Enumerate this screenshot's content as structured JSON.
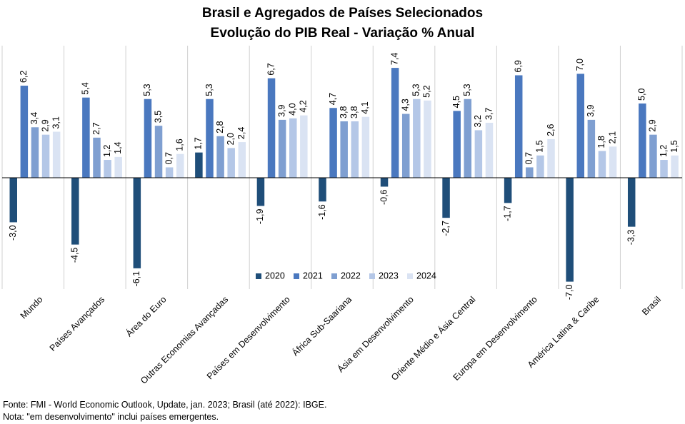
{
  "title": "Brasil e Agregados de Países Selecionados",
  "subtitle": "Evolução do PIB Real - Variação % Anual",
  "footer": {
    "source": "Fonte: FMI - World Economic Outlook, Update, jan. 2023;  Brasil (até 2022):  IBGE.",
    "note": "Nota: \"em desenvolvimento\" inclui países emergentes."
  },
  "chart_data": {
    "type": "bar",
    "categories": [
      "Mundo",
      "Países Avançados",
      "Área do Euro",
      "Outras Economias Avançadas",
      "Países em Desenvolvimento",
      "África Sub-Saariana",
      "Ásia em Desenvolvimento",
      "Oriente Médio e Ásia Central",
      "Europa em Desenvolvimento",
      "América Latina & Caribe",
      "Brasil"
    ],
    "series": [
      {
        "name": "2020",
        "color": "#1f4e79",
        "values": [
          -3.0,
          -4.5,
          -6.1,
          1.7,
          -1.9,
          -1.6,
          -0.6,
          -2.7,
          -1.7,
          -7.0,
          -3.3
        ]
      },
      {
        "name": "2021",
        "color": "#4a78bf",
        "values": [
          6.2,
          5.4,
          5.3,
          5.3,
          6.7,
          4.7,
          7.4,
          4.5,
          6.9,
          7.0,
          5.0
        ]
      },
      {
        "name": "2022",
        "color": "#7f9fd1",
        "values": [
          3.4,
          2.7,
          3.5,
          2.8,
          3.9,
          3.8,
          4.3,
          5.3,
          0.7,
          3.9,
          2.9
        ]
      },
      {
        "name": "2023",
        "color": "#b4c7e7",
        "values": [
          2.9,
          1.2,
          0.7,
          2.0,
          4.0,
          3.8,
          5.3,
          3.2,
          1.5,
          1.8,
          1.2
        ]
      },
      {
        "name": "2024",
        "color": "#dae3f3",
        "values": [
          3.1,
          1.4,
          1.6,
          2.4,
          4.2,
          4.1,
          5.2,
          3.7,
          2.6,
          2.1,
          1.5
        ]
      }
    ],
    "value_labels": [
      [
        "-3,0",
        "6,2",
        "3,4",
        "2,9",
        "3,1"
      ],
      [
        "-4,5",
        "5,4",
        "2,7",
        "1,2",
        "1,4"
      ],
      [
        "-6,1",
        "5,3",
        "3,5",
        "0,7",
        "1,6"
      ],
      [
        "1,7",
        "5,3",
        "2,8",
        "2,0",
        "2,4"
      ],
      [
        "-1,9",
        "6,7",
        "3,9",
        "4,0",
        "4,2"
      ],
      [
        "-1,6",
        "4,7",
        "3,8",
        "3,8",
        "4,1"
      ],
      [
        "-0,6",
        "7,4",
        "4,3",
        "5,3",
        "5,2"
      ],
      [
        "-2,7",
        "4,5",
        "5,3",
        "3,2",
        "3,7"
      ],
      [
        "-1,7",
        "6,9",
        "0,7",
        "1,5",
        "2,6"
      ],
      [
        "-7,0",
        "7,0",
        "3,9",
        "1,8",
        "2,1"
      ],
      [
        "-3,3",
        "5,0",
        "2,9",
        "1,2",
        "1,5"
      ]
    ],
    "ylim": [
      -7.0,
      7.4
    ],
    "legend_position": "bottom-center-inside",
    "grid": false
  }
}
